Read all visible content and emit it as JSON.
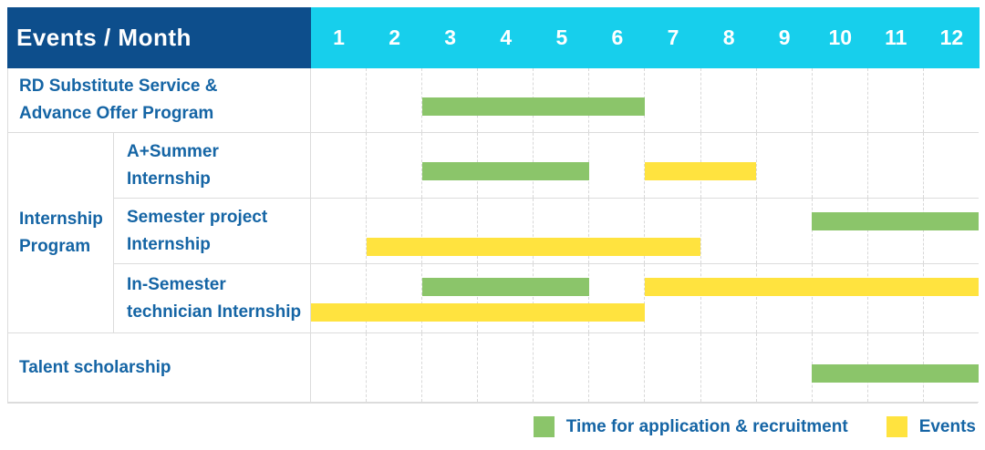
{
  "header": {
    "title": "Events / Month"
  },
  "colors": {
    "header_bg": "#0d4e8c",
    "months_header_bg": "#17cfec",
    "application": "#8bc56a",
    "event": "#ffe33f",
    "label_text": "#1565a5"
  },
  "chart_data": {
    "type": "gantt",
    "title": "Events / Month",
    "x_unit": "month",
    "x_range": [
      1,
      12
    ],
    "months": [
      "1",
      "2",
      "3",
      "4",
      "5",
      "6",
      "7",
      "8",
      "9",
      "10",
      "11",
      "12"
    ],
    "group_label": "Internship\nProgram",
    "rows": [
      {
        "label": "RD Substitute Service &\nAdvance Offer Program",
        "group": "",
        "bars": [
          {
            "kind": "application",
            "start_month": 3,
            "end_month": 6,
            "lane": "mid"
          }
        ]
      },
      {
        "label": "A+Summer\nInternship",
        "group": "Internship Program",
        "bars": [
          {
            "kind": "application",
            "start_month": 3,
            "end_month": 5,
            "lane": "mid"
          },
          {
            "kind": "event",
            "start_month": 7,
            "end_month": 8,
            "lane": "mid"
          }
        ]
      },
      {
        "label": "Semester project\nInternship",
        "group": "Internship Program",
        "bars": [
          {
            "kind": "application",
            "start_month": 10,
            "end_month": 12,
            "lane": "upper"
          },
          {
            "kind": "event",
            "start_month": 2,
            "end_month": 7,
            "lane": "lower"
          }
        ]
      },
      {
        "label": "In-Semester\ntechnician Internship",
        "group": "Internship Program",
        "bars": [
          {
            "kind": "application",
            "start_month": 3,
            "end_month": 5,
            "lane": "upper"
          },
          {
            "kind": "event",
            "start_month": 7,
            "end_month": 12,
            "lane": "upper"
          },
          {
            "kind": "event",
            "start_month": 1,
            "end_month": 6,
            "lane": "lower"
          }
        ]
      },
      {
        "label": "Talent scholarship",
        "group": "",
        "bars": [
          {
            "kind": "application",
            "start_month": 10,
            "end_month": 12,
            "lane": "mid"
          }
        ]
      }
    ],
    "legend": [
      {
        "kind": "application",
        "label": "Time for application & recruitment",
        "color": "#8bc56a"
      },
      {
        "kind": "event",
        "label": "Events",
        "color": "#ffe33f"
      }
    ]
  }
}
